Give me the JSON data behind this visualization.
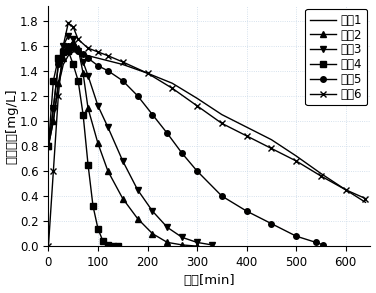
{
  "title": "",
  "xlabel": "时间[min]",
  "ylabel": "甲醛浓度[mg/L]",
  "xlim": [
    0,
    650
  ],
  "ylim": [
    0.0,
    1.92
  ],
  "xticks": [
    0,
    100,
    200,
    300,
    400,
    500,
    600
  ],
  "yticks": [
    0.0,
    0.2,
    0.4,
    0.6,
    0.8,
    1.0,
    1.2,
    1.4,
    1.6,
    1.8
  ],
  "series": [
    {
      "label": "实例1",
      "marker": "None",
      "linestyle": "-",
      "color": "#000000",
      "x": [
        0,
        10,
        20,
        30,
        40,
        50,
        60,
        80,
        100,
        120,
        150,
        200,
        250,
        300,
        350,
        400,
        450,
        500,
        550,
        600,
        640
      ],
      "y": [
        0.8,
        1.0,
        1.28,
        1.45,
        1.52,
        1.55,
        1.55,
        1.52,
        1.5,
        1.48,
        1.45,
        1.38,
        1.3,
        1.18,
        1.05,
        0.95,
        0.85,
        0.72,
        0.58,
        0.45,
        0.35
      ]
    },
    {
      "label": "实例2",
      "marker": "^",
      "linestyle": "-",
      "color": "#000000",
      "x": [
        0,
        10,
        20,
        30,
        40,
        50,
        60,
        70,
        80,
        100,
        120,
        150,
        180,
        210,
        240,
        270,
        300
      ],
      "y": [
        0.8,
        1.0,
        1.3,
        1.5,
        1.6,
        1.63,
        1.58,
        1.38,
        1.1,
        0.82,
        0.6,
        0.38,
        0.22,
        0.1,
        0.03,
        0.01,
        0.0
      ]
    },
    {
      "label": "实例3",
      "marker": "v",
      "linestyle": "-",
      "color": "#000000",
      "x": [
        0,
        10,
        20,
        30,
        40,
        50,
        60,
        70,
        80,
        100,
        120,
        150,
        180,
        210,
        240,
        270,
        300,
        330
      ],
      "y": [
        0.8,
        1.1,
        1.45,
        1.6,
        1.68,
        1.65,
        1.56,
        1.47,
        1.36,
        1.12,
        0.95,
        0.68,
        0.45,
        0.28,
        0.15,
        0.07,
        0.03,
        0.01
      ]
    },
    {
      "label": "实例4",
      "marker": "s",
      "linestyle": "-",
      "color": "#000000",
      "x": [
        0,
        10,
        20,
        30,
        40,
        50,
        60,
        70,
        80,
        90,
        100,
        110,
        120,
        130,
        140
      ],
      "y": [
        0.8,
        1.32,
        1.5,
        1.55,
        1.56,
        1.45,
        1.32,
        1.05,
        0.65,
        0.32,
        0.14,
        0.04,
        0.01,
        0.0,
        0.0
      ]
    },
    {
      "label": "实例5",
      "marker": "o",
      "linestyle": "-",
      "color": "#000000",
      "x": [
        0,
        10,
        20,
        30,
        40,
        50,
        60,
        70,
        80,
        100,
        120,
        150,
        180,
        210,
        240,
        270,
        300,
        350,
        400,
        450,
        500,
        540,
        555
      ],
      "y": [
        0.8,
        1.1,
        1.45,
        1.55,
        1.6,
        1.58,
        1.56,
        1.53,
        1.5,
        1.44,
        1.4,
        1.32,
        1.2,
        1.05,
        0.9,
        0.74,
        0.6,
        0.4,
        0.28,
        0.18,
        0.08,
        0.03,
        0.01
      ]
    },
    {
      "label": "实例6",
      "marker": "x",
      "linestyle": "-",
      "color": "#000000",
      "x": [
        0,
        10,
        20,
        30,
        40,
        50,
        60,
        80,
        100,
        120,
        150,
        200,
        250,
        300,
        350,
        400,
        450,
        500,
        550,
        600,
        640
      ],
      "y": [
        0.0,
        0.6,
        1.2,
        1.6,
        1.78,
        1.75,
        1.65,
        1.58,
        1.55,
        1.52,
        1.47,
        1.38,
        1.26,
        1.12,
        0.98,
        0.88,
        0.78,
        0.68,
        0.56,
        0.45,
        0.38
      ]
    }
  ],
  "background_color": "#ffffff",
  "grid_color": "#c8d8e8",
  "legend_fontsize": 8.5,
  "axis_fontsize": 9.5,
  "tick_fontsize": 8.5,
  "linewidth": 1.0
}
